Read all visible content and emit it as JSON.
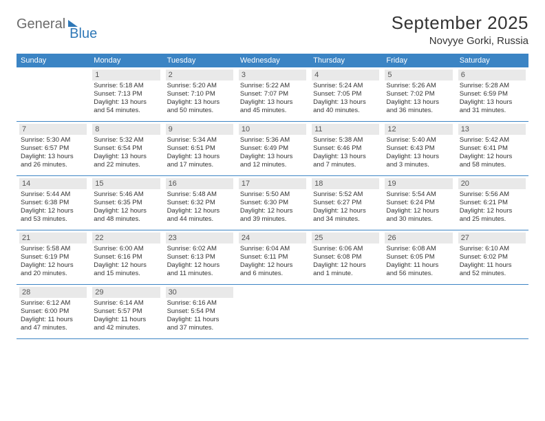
{
  "brand": {
    "general": "General",
    "blue": "Blue"
  },
  "title": "September 2025",
  "location": "Novyye Gorki, Russia",
  "dow": [
    "Sunday",
    "Monday",
    "Tuesday",
    "Wednesday",
    "Thursday",
    "Friday",
    "Saturday"
  ],
  "colors": {
    "header_bg": "#3b84c4",
    "daynum_bg": "#e9e9e9",
    "rule": "#3b84c4",
    "logo_blue": "#2f78b7",
    "logo_gray": "#6b6b6b"
  },
  "weeks": [
    [
      null,
      {
        "n": "1",
        "sunrise": "5:18 AM",
        "sunset": "7:13 PM",
        "daylight": "13 hours and 54 minutes."
      },
      {
        "n": "2",
        "sunrise": "5:20 AM",
        "sunset": "7:10 PM",
        "daylight": "13 hours and 50 minutes."
      },
      {
        "n": "3",
        "sunrise": "5:22 AM",
        "sunset": "7:07 PM",
        "daylight": "13 hours and 45 minutes."
      },
      {
        "n": "4",
        "sunrise": "5:24 AM",
        "sunset": "7:05 PM",
        "daylight": "13 hours and 40 minutes."
      },
      {
        "n": "5",
        "sunrise": "5:26 AM",
        "sunset": "7:02 PM",
        "daylight": "13 hours and 36 minutes."
      },
      {
        "n": "6",
        "sunrise": "5:28 AM",
        "sunset": "6:59 PM",
        "daylight": "13 hours and 31 minutes."
      }
    ],
    [
      {
        "n": "7",
        "sunrise": "5:30 AM",
        "sunset": "6:57 PM",
        "daylight": "13 hours and 26 minutes."
      },
      {
        "n": "8",
        "sunrise": "5:32 AM",
        "sunset": "6:54 PM",
        "daylight": "13 hours and 22 minutes."
      },
      {
        "n": "9",
        "sunrise": "5:34 AM",
        "sunset": "6:51 PM",
        "daylight": "13 hours and 17 minutes."
      },
      {
        "n": "10",
        "sunrise": "5:36 AM",
        "sunset": "6:49 PM",
        "daylight": "13 hours and 12 minutes."
      },
      {
        "n": "11",
        "sunrise": "5:38 AM",
        "sunset": "6:46 PM",
        "daylight": "13 hours and 7 minutes."
      },
      {
        "n": "12",
        "sunrise": "5:40 AM",
        "sunset": "6:43 PM",
        "daylight": "13 hours and 3 minutes."
      },
      {
        "n": "13",
        "sunrise": "5:42 AM",
        "sunset": "6:41 PM",
        "daylight": "12 hours and 58 minutes."
      }
    ],
    [
      {
        "n": "14",
        "sunrise": "5:44 AM",
        "sunset": "6:38 PM",
        "daylight": "12 hours and 53 minutes."
      },
      {
        "n": "15",
        "sunrise": "5:46 AM",
        "sunset": "6:35 PM",
        "daylight": "12 hours and 48 minutes."
      },
      {
        "n": "16",
        "sunrise": "5:48 AM",
        "sunset": "6:32 PM",
        "daylight": "12 hours and 44 minutes."
      },
      {
        "n": "17",
        "sunrise": "5:50 AM",
        "sunset": "6:30 PM",
        "daylight": "12 hours and 39 minutes."
      },
      {
        "n": "18",
        "sunrise": "5:52 AM",
        "sunset": "6:27 PM",
        "daylight": "12 hours and 34 minutes."
      },
      {
        "n": "19",
        "sunrise": "5:54 AM",
        "sunset": "6:24 PM",
        "daylight": "12 hours and 30 minutes."
      },
      {
        "n": "20",
        "sunrise": "5:56 AM",
        "sunset": "6:21 PM",
        "daylight": "12 hours and 25 minutes."
      }
    ],
    [
      {
        "n": "21",
        "sunrise": "5:58 AM",
        "sunset": "6:19 PM",
        "daylight": "12 hours and 20 minutes."
      },
      {
        "n": "22",
        "sunrise": "6:00 AM",
        "sunset": "6:16 PM",
        "daylight": "12 hours and 15 minutes."
      },
      {
        "n": "23",
        "sunrise": "6:02 AM",
        "sunset": "6:13 PM",
        "daylight": "12 hours and 11 minutes."
      },
      {
        "n": "24",
        "sunrise": "6:04 AM",
        "sunset": "6:11 PM",
        "daylight": "12 hours and 6 minutes."
      },
      {
        "n": "25",
        "sunrise": "6:06 AM",
        "sunset": "6:08 PM",
        "daylight": "12 hours and 1 minute."
      },
      {
        "n": "26",
        "sunrise": "6:08 AM",
        "sunset": "6:05 PM",
        "daylight": "11 hours and 56 minutes."
      },
      {
        "n": "27",
        "sunrise": "6:10 AM",
        "sunset": "6:02 PM",
        "daylight": "11 hours and 52 minutes."
      }
    ],
    [
      {
        "n": "28",
        "sunrise": "6:12 AM",
        "sunset": "6:00 PM",
        "daylight": "11 hours and 47 minutes."
      },
      {
        "n": "29",
        "sunrise": "6:14 AM",
        "sunset": "5:57 PM",
        "daylight": "11 hours and 42 minutes."
      },
      {
        "n": "30",
        "sunrise": "6:16 AM",
        "sunset": "5:54 PM",
        "daylight": "11 hours and 37 minutes."
      },
      null,
      null,
      null,
      null
    ]
  ],
  "labels": {
    "sunrise": "Sunrise:",
    "sunset": "Sunset:",
    "daylight": "Daylight:"
  }
}
